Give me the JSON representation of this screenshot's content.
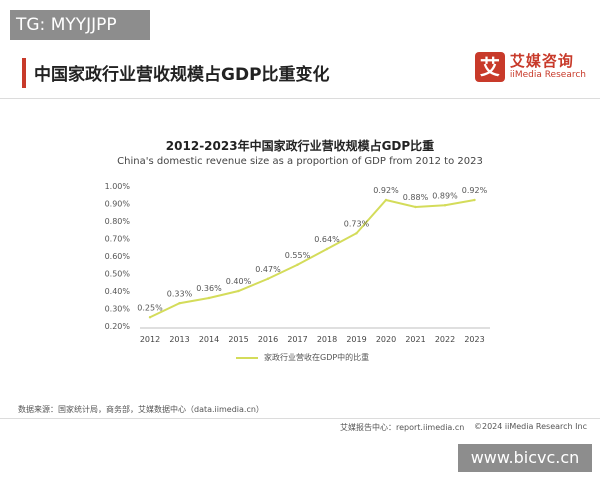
{
  "header": {
    "tg_label": "TG: MYYJJPP",
    "page_title": "中国家政行业营收规模占GDP比重变化",
    "brand_mark": "艾",
    "brand_cn": "艾媒咨询",
    "brand_en": "iiMedia Research"
  },
  "colors": {
    "accent": "#c83a2a",
    "line": "#d4dc5a",
    "axis": "#bfbfbf"
  },
  "chart_data": {
    "type": "line",
    "title": "2012-2023年中国家政行业营收规模占GDP比重",
    "subtitle": "China's domestic revenue size as a proportion of GDP from 2012 to 2023",
    "categories": [
      "2012",
      "2013",
      "2014",
      "2015",
      "2016",
      "2017",
      "2018",
      "2019",
      "2020",
      "2021",
      "2022",
      "2023"
    ],
    "series": [
      {
        "name": "家政行业营收在GDP中的比重",
        "values": [
          0.25,
          0.33,
          0.36,
          0.4,
          0.47,
          0.55,
          0.64,
          0.73,
          0.92,
          0.88,
          0.89,
          0.92
        ]
      }
    ],
    "data_labels": [
      "0.25%",
      "0.33%",
      "0.36%",
      "0.40%",
      "0.47%",
      "0.55%",
      "0.64%",
      "0.73%",
      "0.92%",
      "0.88%",
      "0.89%",
      "0.92%"
    ],
    "yticks": [
      "0.20%",
      "0.30%",
      "0.40%",
      "0.50%",
      "0.60%",
      "0.70%",
      "0.80%",
      "0.90%",
      "1.00%"
    ],
    "ytick_values": [
      0.2,
      0.3,
      0.4,
      0.5,
      0.6,
      0.7,
      0.8,
      0.9,
      1.0
    ],
    "ylim": [
      0.2,
      1.0
    ],
    "grid": false,
    "legend_position": "bottom"
  },
  "footer": {
    "source": "数据来源：国家统计局，商务部，艾媒数据中心（data.iimedia.cn）",
    "left": "艾媒报告中心：report.iimedia.cn",
    "right": "©2024 iiMedia Research Inc",
    "watermark": "www.bicvc.cn"
  }
}
